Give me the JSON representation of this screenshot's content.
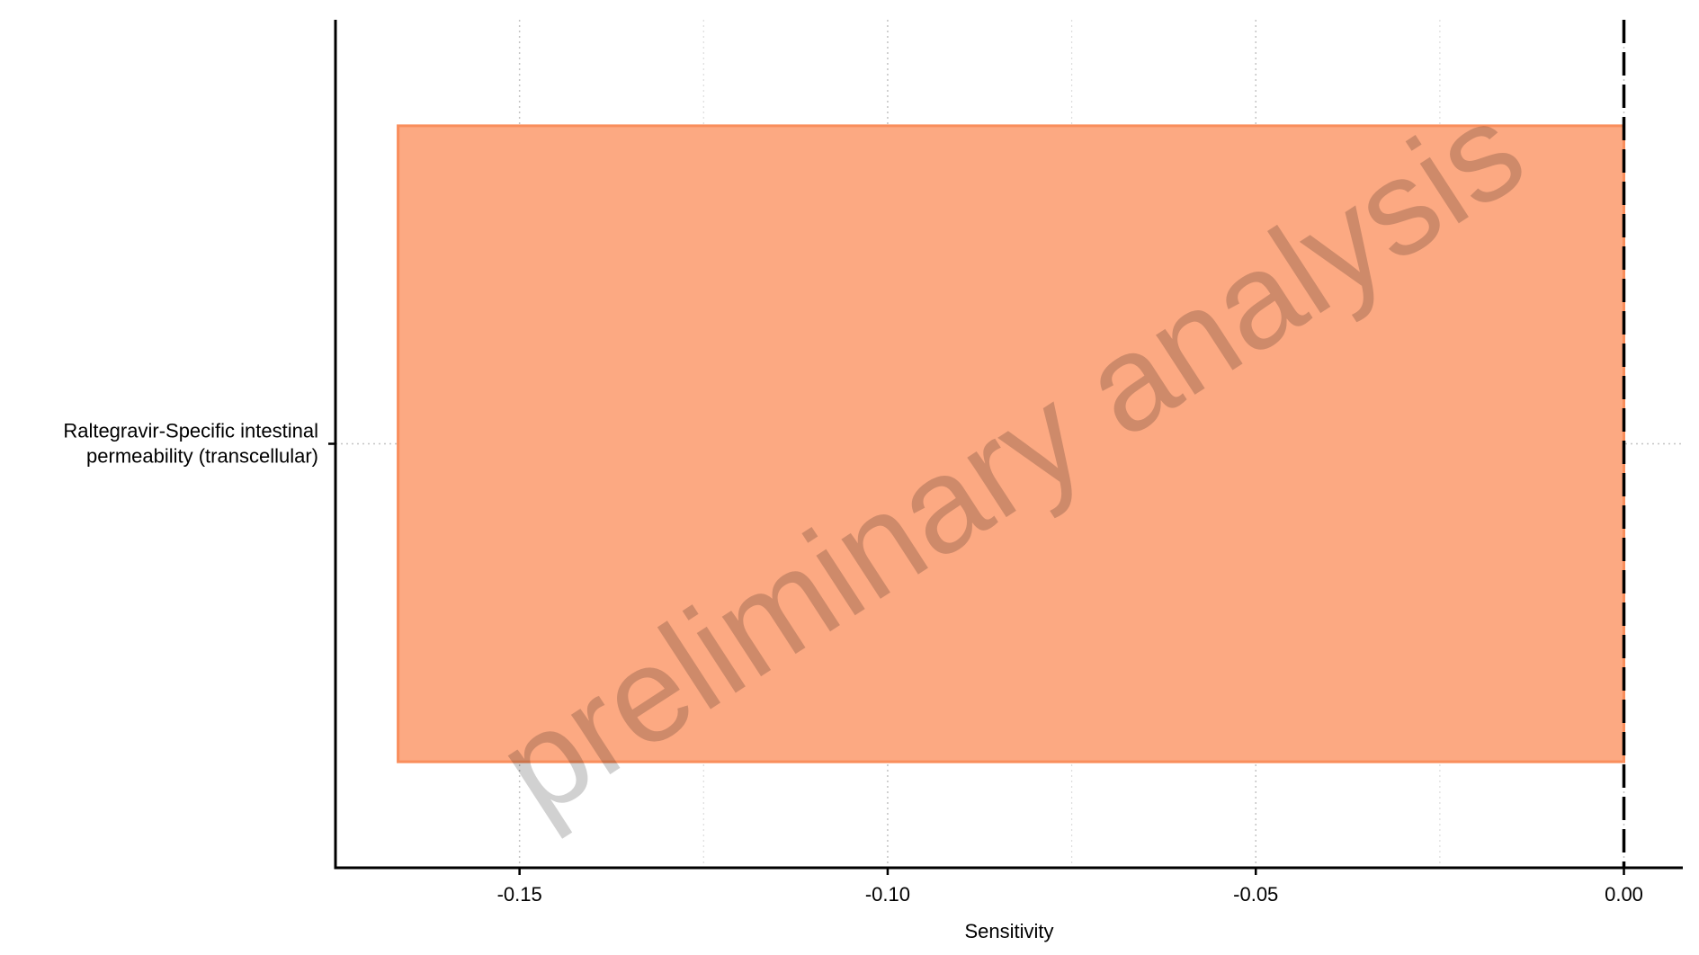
{
  "chart_data": {
    "type": "bar",
    "orientation": "horizontal",
    "categories": [
      "Raltegravir-Specific intestinal permeability (transcellular)"
    ],
    "category_lines": [
      [
        "Raltegravir-Specific intestinal",
        "permeability (transcellular)"
      ]
    ],
    "values": [
      -0.1665
    ],
    "xlabel": "Sensitivity",
    "ylabel": "",
    "xlim": [
      -0.175,
      0.008
    ],
    "xticks": [
      -0.15,
      -0.1,
      -0.05,
      0.0
    ],
    "xtick_labels": [
      "-0.15",
      "-0.10",
      "-0.05",
      "0.00"
    ],
    "reference_line": 0.0,
    "grid": "dotted",
    "bar_color": "#FCA982",
    "bar_edge_color": "#F98E5C",
    "watermark": "preliminary analysis"
  }
}
